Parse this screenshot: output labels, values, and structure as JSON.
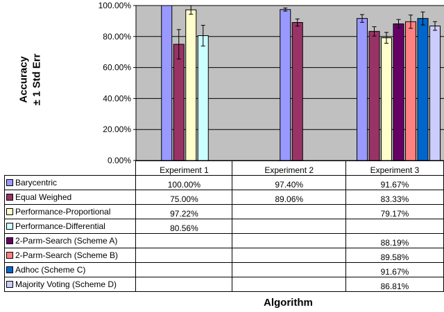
{
  "chart_data": {
    "type": "bar",
    "ylabel_line1": "Accuracy",
    "ylabel_line2": "± 1 Std Err",
    "xlabel": "Algorithm",
    "ylim": [
      0,
      100
    ],
    "yticks": [
      "0.00%",
      "20.00%",
      "40.00%",
      "60.00%",
      "80.00%",
      "100.00%"
    ],
    "grid": true,
    "plot_bg": "#c0c0c0",
    "categories": [
      "Experiment 1",
      "Experiment 2",
      "Experiment 3"
    ],
    "series": [
      {
        "name": "Barycentric",
        "color": "#9999ff",
        "values": [
          100.0,
          97.4,
          91.67
        ],
        "labels": [
          "100.00%",
          "97.40%",
          "91.67%"
        ],
        "err": [
          null,
          1.0,
          2.5
        ]
      },
      {
        "name": "Equal Weighed",
        "color": "#993366",
        "values": [
          75.0,
          89.06,
          83.33
        ],
        "labels": [
          "75.00%",
          "89.06%",
          "83.33%"
        ],
        "err": [
          9.5,
          2.3,
          3.0
        ]
      },
      {
        "name": "Performance-Proportional",
        "color": "#ffffcc",
        "values": [
          97.22,
          null,
          79.17
        ],
        "labels": [
          "97.22%",
          "",
          "79.17%"
        ],
        "err": [
          2.8,
          null,
          3.5
        ]
      },
      {
        "name": "Performance-Differential",
        "color": "#ccffff",
        "values": [
          80.56,
          null,
          null
        ],
        "labels": [
          "80.56%",
          "",
          ""
        ],
        "err": [
          6.7,
          null,
          null
        ]
      },
      {
        "name": "2-Parm-Search (Scheme A)",
        "color": "#660066",
        "values": [
          null,
          null,
          88.19
        ],
        "labels": [
          "",
          "",
          "88.19%"
        ],
        "err": [
          null,
          null,
          2.8
        ]
      },
      {
        "name": "2-Parm-Search (Scheme B)",
        "color": "#ff8080",
        "values": [
          null,
          null,
          89.58
        ],
        "labels": [
          "",
          "",
          "89.58%"
        ],
        "err": [
          null,
          null,
          4.3
        ]
      },
      {
        "name": "Adhoc (Scheme C)",
        "color": "#0066cc",
        "values": [
          null,
          null,
          91.67
        ],
        "labels": [
          "",
          "",
          "91.67%"
        ],
        "err": [
          null,
          null,
          4.2
        ]
      },
      {
        "name": "Majority Voting (Scheme D)",
        "color": "#ccccff",
        "values": [
          null,
          null,
          86.81
        ],
        "labels": [
          "",
          "",
          "86.81%"
        ],
        "err": [
          null,
          null,
          2.8
        ]
      }
    ]
  }
}
